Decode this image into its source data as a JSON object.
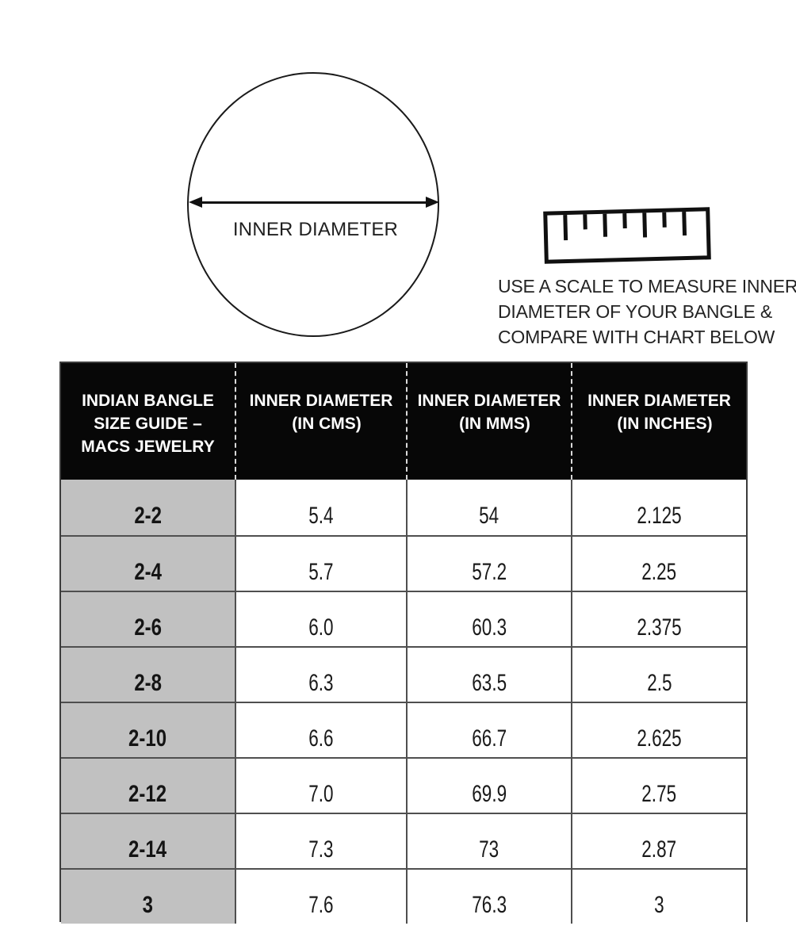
{
  "diagram": {
    "circle_label": "INNER DIAMETER",
    "instruction_lines": [
      "USE A SCALE TO MEASURE INNER",
      "DIAMETER OF YOUR BANGLE &",
      "COMPARE WITH CHART BELOW"
    ]
  },
  "colors": {
    "header_bg": "#070707",
    "header_text": "#ffffff",
    "size_column_bg": "#c1c1c1",
    "grid_line": "#4f4f4f",
    "ink": "#1c1c1c"
  },
  "table": {
    "headers": [
      {
        "lines": [
          "INDIAN BANGLE",
          "SIZE GUIDE –",
          "MACS JEWELRY"
        ]
      },
      {
        "lines": [
          "INNER DIAMETER",
          "(IN CMS)"
        ]
      },
      {
        "lines": [
          "INNER DIAMETER",
          "(IN MMS)"
        ]
      },
      {
        "lines": [
          "INNER DIAMETER",
          "(IN INCHES)"
        ]
      }
    ],
    "rows": [
      {
        "size": "2-2",
        "cms": "5.4",
        "mms": "54",
        "inches": "2.125"
      },
      {
        "size": "2-4",
        "cms": "5.7",
        "mms": "57.2",
        "inches": "2.25"
      },
      {
        "size": "2-6",
        "cms": "6.0",
        "mms": "60.3",
        "inches": "2.375"
      },
      {
        "size": "2-8",
        "cms": "6.3",
        "mms": "63.5",
        "inches": "2.5"
      },
      {
        "size": "2-10",
        "cms": "6.6",
        "mms": "66.7",
        "inches": "2.625"
      },
      {
        "size": "2-12",
        "cms": "7.0",
        "mms": "69.9",
        "inches": "2.75"
      },
      {
        "size": "2-14",
        "cms": "7.3",
        "mms": "73",
        "inches": "2.87"
      },
      {
        "size": "3",
        "cms": "7.6",
        "mms": "76.3",
        "inches": "3"
      }
    ]
  }
}
